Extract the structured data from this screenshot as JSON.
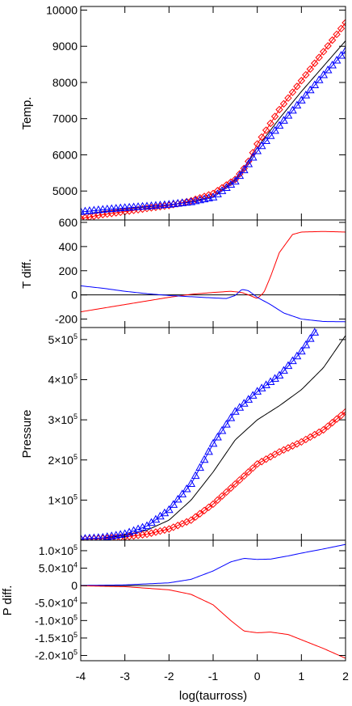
{
  "chart_data": [
    {
      "id": "temp",
      "type": "line",
      "ylabel": "Temp.",
      "xlim": [
        -4,
        2
      ],
      "ylim": [
        4200,
        10100
      ],
      "yticks": [
        {
          "v": 5000,
          "label": "5000"
        },
        {
          "v": 6000,
          "label": "6000"
        },
        {
          "v": 7000,
          "label": "7000"
        },
        {
          "v": 8000,
          "label": "8000"
        },
        {
          "v": 9000,
          "label": "9000"
        },
        {
          "v": 10000,
          "label": "10000"
        }
      ],
      "series": [
        {
          "color": "#000000",
          "marker": "none",
          "x": [
            -4,
            -3.5,
            -3,
            -2.5,
            -2,
            -1.5,
            -1,
            -0.5,
            -0.25,
            0,
            0.5,
            1,
            1.5,
            2
          ],
          "y": [
            4350,
            4430,
            4500,
            4560,
            4620,
            4700,
            4860,
            5300,
            5700,
            6200,
            7000,
            7750,
            8450,
            9150
          ]
        },
        {
          "color": "#ff0000",
          "marker": "diamond",
          "x": [
            -4,
            -3.5,
            -3,
            -2.5,
            -2,
            -1.5,
            -1,
            -0.5,
            -0.25,
            0,
            0.5,
            1,
            1.5,
            2
          ],
          "y": [
            4240,
            4350,
            4430,
            4520,
            4600,
            4730,
            4930,
            5320,
            5700,
            6300,
            7250,
            8050,
            8850,
            9650
          ]
        },
        {
          "color": "#0000ff",
          "marker": "triangle",
          "x": [
            -4,
            -3.5,
            -3,
            -2.5,
            -2,
            -1.5,
            -1,
            -0.5,
            -0.25,
            0,
            0.5,
            1,
            1.5,
            2
          ],
          "y": [
            4420,
            4480,
            4530,
            4570,
            4620,
            4690,
            4820,
            5260,
            5650,
            6100,
            6800,
            7500,
            8200,
            8870
          ]
        }
      ]
    },
    {
      "id": "tdiff",
      "type": "line",
      "ylabel": "T diff.",
      "xlim": [
        -4,
        2
      ],
      "ylim": [
        -270,
        620
      ],
      "yticks": [
        {
          "v": -200,
          "label": "-200"
        },
        {
          "v": 0,
          "label": "0"
        },
        {
          "v": 200,
          "label": "200"
        },
        {
          "v": 400,
          "label": "400"
        },
        {
          "v": 600,
          "label": "600"
        }
      ],
      "series": [
        {
          "color": "#000000",
          "marker": "none",
          "x": [
            -4,
            2
          ],
          "y": [
            0,
            0
          ]
        },
        {
          "color": "#ff0000",
          "marker": "none",
          "x": [
            -4,
            -3.5,
            -3,
            -2.5,
            -2,
            -1.5,
            -1,
            -0.6,
            -0.35,
            -0.2,
            0,
            0.15,
            0.3,
            0.5,
            0.8,
            1,
            1.5,
            2
          ],
          "y": [
            -140,
            -110,
            -80,
            -50,
            -20,
            5,
            20,
            30,
            20,
            0,
            -30,
            20,
            150,
            350,
            500,
            520,
            525,
            520
          ]
        },
        {
          "color": "#0000ff",
          "marker": "none",
          "x": [
            -4,
            -3.5,
            -3,
            -2.5,
            -2,
            -1.5,
            -1,
            -0.7,
            -0.5,
            -0.35,
            -0.2,
            0,
            0.3,
            0.6,
            1,
            1.5,
            2
          ],
          "y": [
            75,
            55,
            30,
            10,
            -5,
            -15,
            -25,
            -30,
            -5,
            45,
            35,
            -20,
            -80,
            -150,
            -200,
            -220,
            -222
          ]
        }
      ]
    },
    {
      "id": "pressure",
      "type": "line",
      "ylabel": "Pressure",
      "xlim": [
        -4,
        2
      ],
      "ylim": [
        0,
        530000
      ],
      "yticks": [
        {
          "v": 100000,
          "mant": "1×10",
          "exp": "5"
        },
        {
          "v": 200000,
          "mant": "2×10",
          "exp": "5"
        },
        {
          "v": 300000,
          "mant": "3×10",
          "exp": "5"
        },
        {
          "v": 400000,
          "mant": "4×10",
          "exp": "5"
        },
        {
          "v": 500000,
          "mant": "5×10",
          "exp": "5"
        }
      ],
      "series": [
        {
          "color": "#000000",
          "marker": "none",
          "x": [
            -4,
            -3.5,
            -3,
            -2.5,
            -2,
            -1.5,
            -1,
            -0.5,
            0,
            0.5,
            1,
            1.5,
            2
          ],
          "y": [
            2500,
            5000,
            12000,
            25000,
            50000,
            100000,
            170000,
            250000,
            300000,
            335000,
            375000,
            430000,
            510000
          ]
        },
        {
          "color": "#ff0000",
          "marker": "diamond",
          "x": [
            -4,
            -3.5,
            -3,
            -2.5,
            -2,
            -1.5,
            -1,
            -0.5,
            0,
            0.5,
            1,
            1.5,
            2
          ],
          "y": [
            2500,
            4000,
            8000,
            15000,
            28000,
            50000,
            90000,
            140000,
            190000,
            220000,
            245000,
            275000,
            320000
          ]
        },
        {
          "color": "#0000ff",
          "marker": "triangle",
          "x": [
            -4,
            -3.5,
            -3,
            -2.5,
            -2,
            -1.5,
            -1,
            -0.5,
            0,
            0.5,
            1,
            1.35
          ],
          "y": [
            3000,
            6000,
            15000,
            35000,
            75000,
            140000,
            240000,
            320000,
            370000,
            410000,
            470000,
            525000
          ]
        }
      ]
    },
    {
      "id": "pdiff",
      "type": "line",
      "ylabel": "P diff.",
      "xlim": [
        -4,
        2
      ],
      "ylim": [
        -215000,
        130000
      ],
      "xticks": [
        -4,
        -3,
        -2,
        -1,
        0,
        1,
        2
      ],
      "xlabel": "log(taurross)",
      "yticks": [
        {
          "v": 100000,
          "mant": "1.0×10",
          "exp": "5"
        },
        {
          "v": 50000,
          "mant": "5.0×10",
          "exp": "4"
        },
        {
          "v": 0,
          "mant": "0",
          "exp": ""
        },
        {
          "v": -50000,
          "mant": "-5.0×10",
          "exp": "4"
        },
        {
          "v": -100000,
          "mant": "-1.0×10",
          "exp": "5"
        },
        {
          "v": -150000,
          "mant": "-1.5×10",
          "exp": "5"
        },
        {
          "v": -200000,
          "mant": "-2.0×10",
          "exp": "5"
        }
      ],
      "series": [
        {
          "color": "#000000",
          "marker": "none",
          "x": [
            -4,
            2
          ],
          "y": [
            0,
            0
          ]
        },
        {
          "color": "#0000ff",
          "marker": "none",
          "x": [
            -4,
            -3,
            -2,
            -1.5,
            -1,
            -0.6,
            -0.3,
            0,
            0.3,
            0.7,
            1,
            1.5,
            2
          ],
          "y": [
            500,
            2000,
            8000,
            18000,
            42000,
            68000,
            78000,
            75000,
            76000,
            85000,
            93000,
            105000,
            118000
          ]
        },
        {
          "color": "#ff0000",
          "marker": "none",
          "x": [
            -4,
            -3,
            -2,
            -1.5,
            -1,
            -0.6,
            -0.3,
            0,
            0.3,
            0.7,
            1,
            1.5,
            2
          ],
          "y": [
            -500,
            -3000,
            -12000,
            -25000,
            -55000,
            -100000,
            -130000,
            -135000,
            -133000,
            -140000,
            -155000,
            -180000,
            -208000
          ]
        }
      ]
    }
  ]
}
